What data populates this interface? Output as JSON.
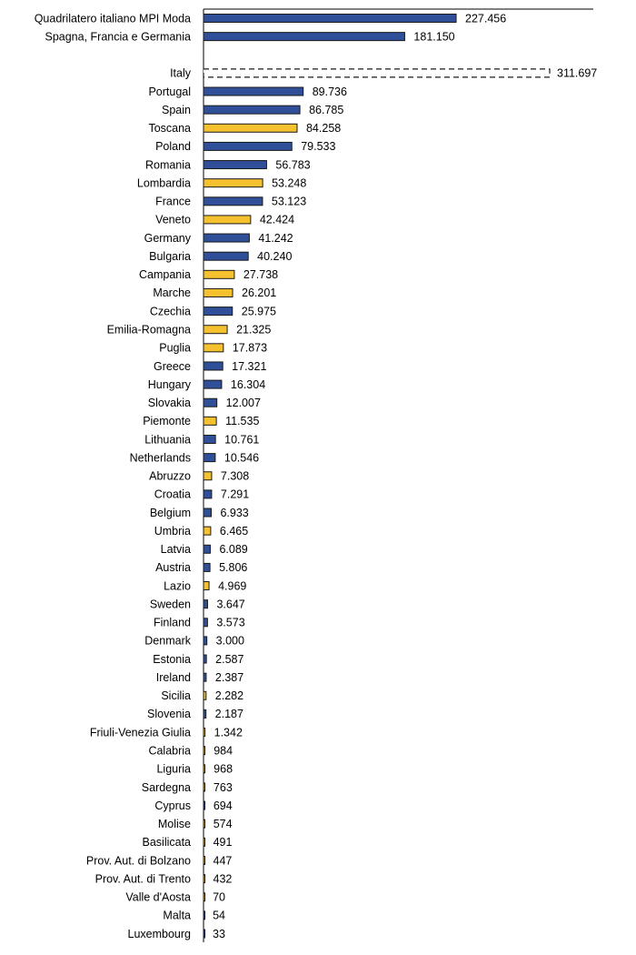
{
  "chart_data": {
    "type": "hbar",
    "categories": [
      "Quadrilatero italiano MPI Moda",
      "Spagna, Francia e Germania",
      null,
      "Italy",
      "Portugal",
      "Spain",
      "Toscana",
      "Poland",
      "Romania",
      "Lombardia",
      "France",
      "Veneto",
      "Germany",
      "Bulgaria",
      "Campania",
      "Marche",
      "Czechia",
      "Emilia-Romagna",
      "Puglia",
      "Greece",
      "Hungary",
      "Slovakia",
      "Piemonte",
      "Lithuania",
      "Netherlands",
      "Abruzzo",
      "Croatia",
      "Belgium",
      "Umbria",
      "Latvia",
      "Austria",
      "Lazio",
      "Sweden",
      "Finland",
      "Denmark",
      "Estonia",
      "Ireland",
      "Sicilia",
      "Slovenia",
      "Friuli-Venezia Giulia",
      "Calabria",
      "Liguria",
      "Sardegna",
      "Cyprus",
      "Molise",
      "Basilicata",
      "Prov. Aut. di Bolzano",
      "Prov. Aut. di Trento",
      "Valle d'Aosta",
      "Malta",
      "Luxembourg"
    ],
    "values": [
      227456,
      181150,
      null,
      311697,
      89736,
      86785,
      84258,
      79533,
      56783,
      53248,
      53123,
      42424,
      41242,
      40240,
      27738,
      26201,
      25975,
      21325,
      17873,
      17321,
      16304,
      12007,
      11535,
      10761,
      10546,
      7308,
      7291,
      6933,
      6465,
      6089,
      5806,
      4969,
      3647,
      3573,
      3000,
      2587,
      2387,
      2282,
      2187,
      1342,
      984,
      968,
      763,
      694,
      574,
      491,
      447,
      432,
      70,
      54,
      33
    ],
    "value_labels": [
      "227.456",
      "181.150",
      null,
      "311.697",
      "89.736",
      "86.785",
      "84.258",
      "79.533",
      "56.783",
      "53.248",
      "53.123",
      "42.424",
      "41.242",
      "40.240",
      "27.738",
      "26.201",
      "25.975",
      "21.325",
      "17.873",
      "17.321",
      "16.304",
      "12.007",
      "11.535",
      "10.761",
      "10.546",
      "7.308",
      "7.291",
      "6.933",
      "6.465",
      "6.089",
      "5.806",
      "4.969",
      "3.647",
      "3.573",
      "3.000",
      "2.587",
      "2.387",
      "2.282",
      "2.187",
      "1.342",
      "984",
      "968",
      "763",
      "694",
      "574",
      "491",
      "447",
      "432",
      "70",
      "54",
      "33"
    ],
    "colors": [
      "#2f4f99",
      "#2f4f99",
      null,
      "#ffffff",
      "#2f4f99",
      "#2f4f99",
      "#f5c12e",
      "#2f4f99",
      "#2f4f99",
      "#f5c12e",
      "#2f4f99",
      "#f5c12e",
      "#2f4f99",
      "#2f4f99",
      "#f5c12e",
      "#f5c12e",
      "#2f4f99",
      "#f5c12e",
      "#f5c12e",
      "#2f4f99",
      "#2f4f99",
      "#2f4f99",
      "#f5c12e",
      "#2f4f99",
      "#2f4f99",
      "#f5c12e",
      "#2f4f99",
      "#2f4f99",
      "#f5c12e",
      "#2f4f99",
      "#2f4f99",
      "#f5c12e",
      "#2f4f99",
      "#2f4f99",
      "#2f4f99",
      "#2f4f99",
      "#2f4f99",
      "#f5c12e",
      "#2f4f99",
      "#f5c12e",
      "#f5c12e",
      "#f5c12e",
      "#f5c12e",
      "#2f4f99",
      "#f5c12e",
      "#f5c12e",
      "#f5c12e",
      "#f5c12e",
      "#f5c12e",
      "#2f4f99",
      "#2f4f99"
    ],
    "dashed_categories": [
      "Italy"
    ]
  }
}
